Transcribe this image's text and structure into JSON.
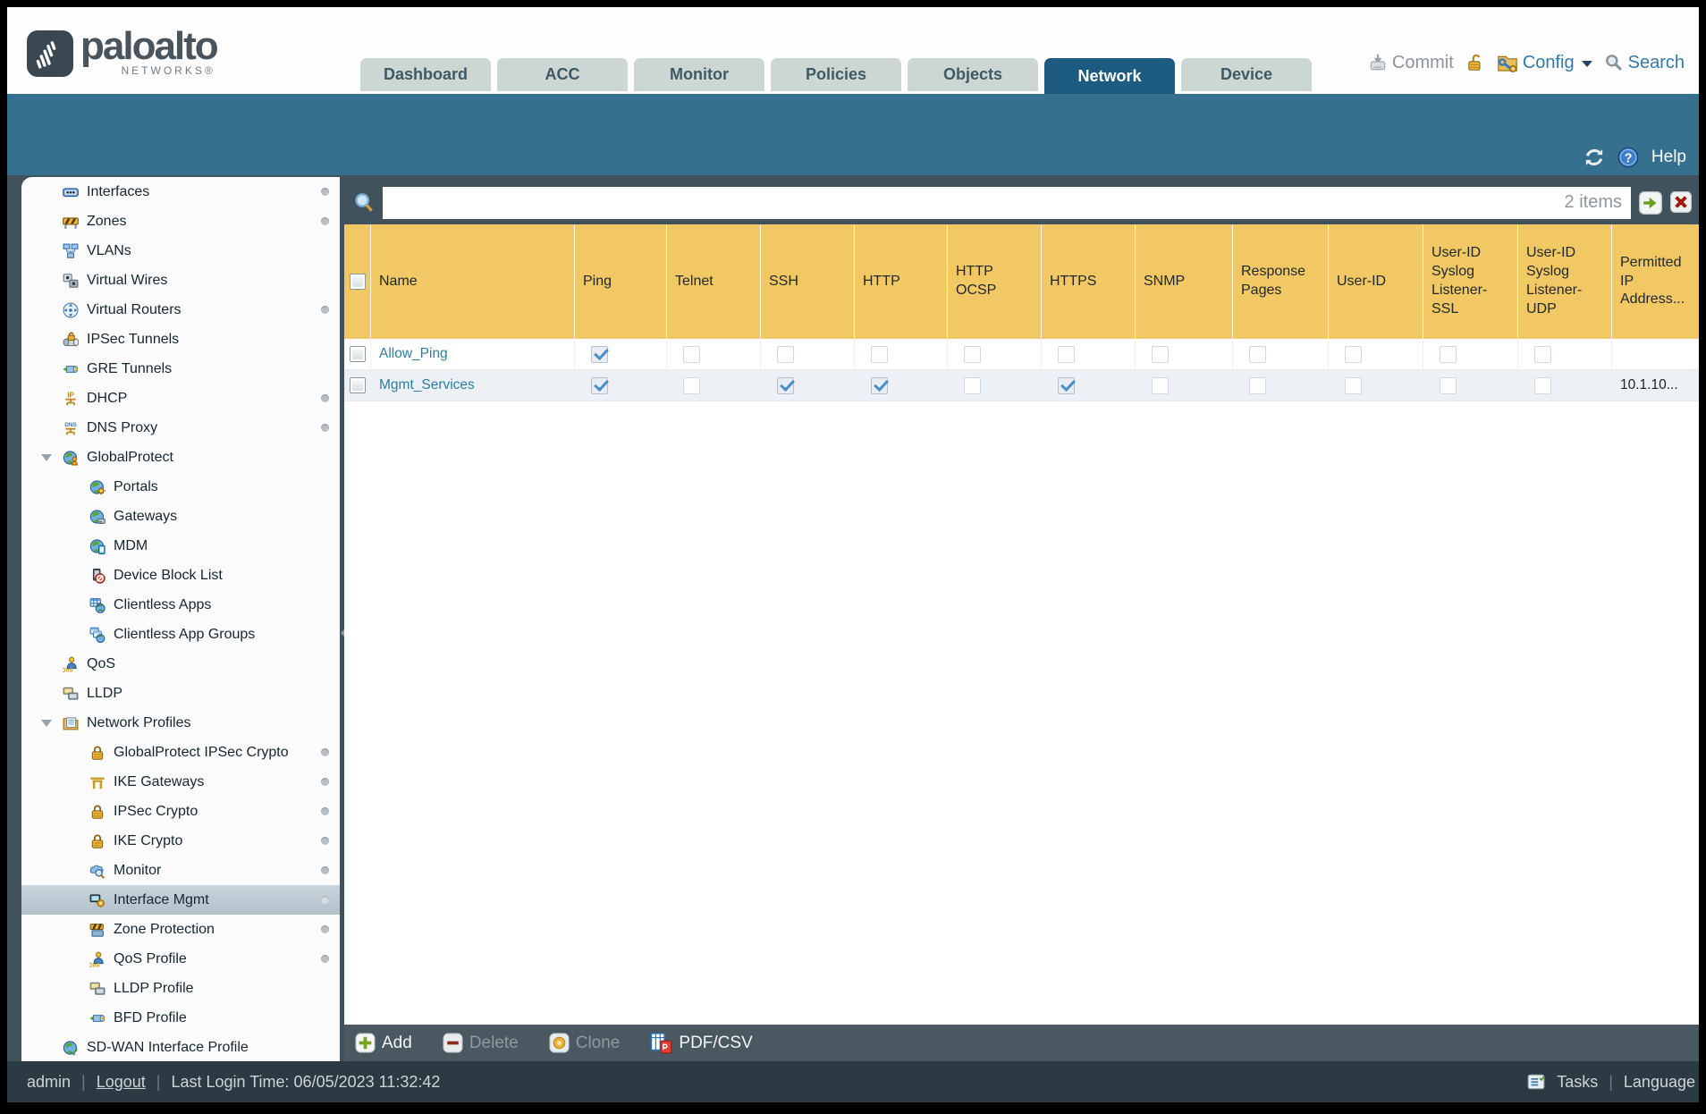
{
  "header": {
    "logo": {
      "brand": "paloalto",
      "sub": "NETWORKS®"
    },
    "tabs": [
      {
        "label": "Dashboard",
        "active": false
      },
      {
        "label": "ACC",
        "active": false
      },
      {
        "label": "Monitor",
        "active": false
      },
      {
        "label": "Policies",
        "active": false
      },
      {
        "label": "Objects",
        "active": false
      },
      {
        "label": "Network",
        "active": true
      },
      {
        "label": "Device",
        "active": false
      }
    ],
    "commit_label": "Commit",
    "config_label": "Config",
    "search_label": "Search"
  },
  "band": {
    "help_label": "Help"
  },
  "sidebar": {
    "items": [
      {
        "label": "Interfaces",
        "icon": "interfaces",
        "level": 0,
        "dot": true
      },
      {
        "label": "Zones",
        "icon": "zones",
        "level": 0,
        "dot": true
      },
      {
        "label": "VLANs",
        "icon": "vlans",
        "level": 0
      },
      {
        "label": "Virtual Wires",
        "icon": "virtual-wires",
        "level": 0
      },
      {
        "label": "Virtual Routers",
        "icon": "virtual-routers",
        "level": 0,
        "dot": true
      },
      {
        "label": "IPSec Tunnels",
        "icon": "ipsec-tunnels",
        "level": 0
      },
      {
        "label": "GRE Tunnels",
        "icon": "gre-tunnels",
        "level": 0
      },
      {
        "label": "DHCP",
        "icon": "dhcp",
        "level": 0,
        "dot": true
      },
      {
        "label": "DNS Proxy",
        "icon": "dns-proxy",
        "level": 0,
        "dot": true
      },
      {
        "label": "GlobalProtect",
        "icon": "globalprotect",
        "level": 0,
        "expanded": true
      },
      {
        "label": "Portals",
        "icon": "portals",
        "level": 1
      },
      {
        "label": "Gateways",
        "icon": "gateways",
        "level": 1
      },
      {
        "label": "MDM",
        "icon": "mdm",
        "level": 1
      },
      {
        "label": "Device Block List",
        "icon": "device-block-list",
        "level": 1
      },
      {
        "label": "Clientless Apps",
        "icon": "clientless-apps",
        "level": 1
      },
      {
        "label": "Clientless App Groups",
        "icon": "clientless-app-groups",
        "level": 1
      },
      {
        "label": "QoS",
        "icon": "qos",
        "level": 0
      },
      {
        "label": "LLDP",
        "icon": "lldp",
        "level": 0
      },
      {
        "label": "Network Profiles",
        "icon": "network-profiles",
        "level": 0,
        "expanded": true
      },
      {
        "label": "GlobalProtect IPSec Crypto",
        "icon": "lock",
        "level": 1,
        "dot": true
      },
      {
        "label": "IKE Gateways",
        "icon": "ike-gateways",
        "level": 1,
        "dot": true
      },
      {
        "label": "IPSec Crypto",
        "icon": "lock",
        "level": 1,
        "dot": true
      },
      {
        "label": "IKE Crypto",
        "icon": "lock",
        "level": 1,
        "dot": true
      },
      {
        "label": "Monitor",
        "icon": "monitor-profile",
        "level": 1,
        "dot": true
      },
      {
        "label": "Interface Mgmt",
        "icon": "interface-mgmt",
        "level": 1,
        "selected": true,
        "dot": true
      },
      {
        "label": "Zone Protection",
        "icon": "zone-protection",
        "level": 1,
        "dot": true
      },
      {
        "label": "QoS Profile",
        "icon": "qos-profile",
        "level": 1,
        "dot": true
      },
      {
        "label": "LLDP Profile",
        "icon": "lldp-profile",
        "level": 1
      },
      {
        "label": "BFD Profile",
        "icon": "bfd-profile",
        "level": 1
      },
      {
        "label": "SD-WAN Interface Profile",
        "icon": "sdwan",
        "level": 0
      }
    ]
  },
  "content": {
    "search": {
      "value": "",
      "count_label": "2 items"
    },
    "table": {
      "columns": [
        "Name",
        "Ping",
        "Telnet",
        "SSH",
        "HTTP",
        "HTTP OCSP",
        "HTTPS",
        "SNMP",
        "Response Pages",
        "User-ID",
        "User-ID Syslog Listener-SSL",
        "User-ID Syslog Listener-UDP",
        "Permitted IP Address..."
      ],
      "rows": [
        {
          "name": "Allow_Ping",
          "checks": [
            true,
            false,
            false,
            false,
            false,
            false,
            false,
            false,
            false,
            false,
            false
          ],
          "permitted_ip": ""
        },
        {
          "name": "Mgmt_Services",
          "checks": [
            true,
            false,
            true,
            true,
            false,
            true,
            false,
            false,
            false,
            false,
            false
          ],
          "permitted_ip": "10.1.10..."
        }
      ]
    },
    "actions": [
      {
        "label": "Add",
        "icon": "add",
        "enabled": true
      },
      {
        "label": "Delete",
        "icon": "delete",
        "enabled": false
      },
      {
        "label": "Clone",
        "icon": "clone",
        "enabled": false
      },
      {
        "label": "PDF/CSV",
        "icon": "pdfcsv",
        "enabled": true
      }
    ]
  },
  "statusbar": {
    "user": "admin",
    "logout_label": "Logout",
    "last_login": "Last Login Time: 06/05/2023 11:32:42",
    "tasks_label": "Tasks",
    "language_label": "Language"
  },
  "colors": {
    "accent_teal_band": "#35708e",
    "active_tab": "#1d5c80",
    "table_header": "#f1c863",
    "link": "#2e7d9e",
    "check": "#4a8ec2"
  }
}
